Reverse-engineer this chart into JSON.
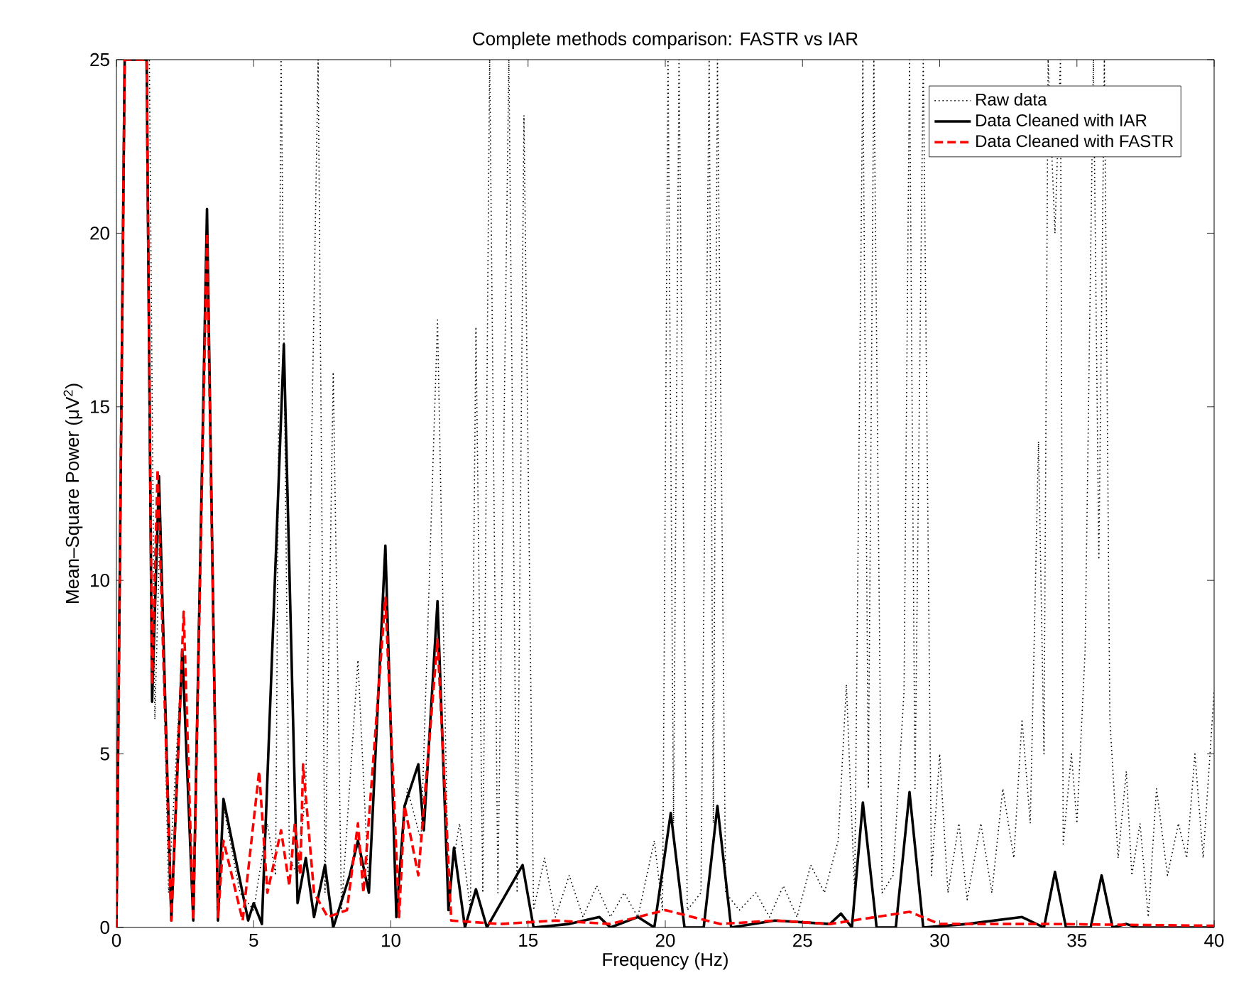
{
  "chart_data": {
    "type": "line",
    "title": "Complete methods comparison: FASTR vs IAR",
    "xlabel": "Frequency (Hz)",
    "ylabel": "Mean–Square Power (μV$^{2}$)",
    "xlim": [
      0,
      40
    ],
    "ylim": [
      0,
      25
    ],
    "xticks": [
      0,
      5,
      10,
      15,
      20,
      25,
      30,
      35,
      40
    ],
    "yticks": [
      0,
      5,
      10,
      15,
      20,
      25
    ],
    "grid": false,
    "legend": "top right",
    "series": [
      {
        "name": "Raw data",
        "color": "#000000",
        "line_style": "dotted",
        "x": [
          0,
          0.3,
          1.2,
          1.4,
          1.6,
          1.9,
          2.4,
          2.8,
          3.3,
          3.7,
          3.9,
          4.5,
          5.0,
          5.5,
          5.8,
          6.0,
          6.3,
          6.6,
          6.9,
          7.35,
          7.6,
          7.9,
          8.2,
          8.8,
          9.2,
          9.8,
          10.2,
          10.6,
          11.1,
          11.7,
          12.1,
          12.5,
          12.9,
          13.1,
          13.35,
          13.6,
          13.9,
          14.3,
          14.6,
          14.85,
          15.2,
          15.6,
          16.0,
          16.5,
          17.0,
          17.5,
          18.0,
          18.5,
          19.0,
          19.6,
          19.9,
          20.1,
          20.3,
          20.5,
          20.8,
          21.3,
          21.6,
          21.75,
          21.9,
          22.2,
          22.7,
          23.3,
          23.8,
          24.3,
          24.8,
          25.3,
          25.8,
          26.3,
          26.6,
          26.9,
          27.2,
          27.4,
          27.6,
          27.9,
          28.3,
          28.7,
          28.9,
          29.1,
          29.4,
          29.7,
          30.0,
          30.3,
          30.7,
          31.0,
          31.5,
          31.9,
          32.3,
          32.7,
          33.0,
          33.3,
          33.6,
          33.8,
          33.95,
          34.2,
          34.4,
          34.5,
          34.8,
          35.0,
          35.3,
          35.6,
          35.8,
          36.0,
          36.2,
          36.5,
          36.8,
          37.0,
          37.3,
          37.6,
          37.9,
          38.3,
          38.7,
          39.0,
          39.3,
          39.6,
          40
        ],
        "values": [
          0.5,
          25,
          25,
          6,
          12,
          1,
          8,
          0.5,
          20.5,
          0.5,
          3.5,
          1,
          0.5,
          3,
          1.5,
          25,
          2,
          1.5,
          4,
          25,
          1,
          16,
          0.5,
          7.7,
          1,
          11,
          0.5,
          4,
          2.5,
          17.5,
          1,
          3,
          0.5,
          17.3,
          1,
          25,
          1,
          25,
          1,
          23.4,
          0.5,
          2,
          0.3,
          1.5,
          0.3,
          1.2,
          0.3,
          1.0,
          0.3,
          2.5,
          0.5,
          25,
          3,
          25,
          0.5,
          1,
          25,
          3,
          25,
          1,
          0.5,
          1.0,
          0.3,
          1.2,
          0.3,
          1.8,
          1,
          2.5,
          7,
          1,
          25,
          4,
          25,
          1,
          1.5,
          6.8,
          25,
          4,
          25,
          1.5,
          5,
          1,
          3,
          0.8,
          3,
          1,
          4,
          2,
          6,
          3,
          14,
          5,
          25,
          20,
          25,
          2.4,
          5,
          3,
          8,
          25,
          10.6,
          25,
          6,
          2,
          4.5,
          1.5,
          3,
          0.3,
          4,
          1.5,
          3,
          2,
          5,
          2,
          6.8
        ]
      },
      {
        "name": "Data Cleaned with IAR",
        "color": "#000000",
        "line_style": "solid",
        "x": [
          0,
          0.3,
          1.1,
          1.3,
          1.55,
          2.0,
          2.4,
          2.8,
          3.3,
          3.7,
          3.9,
          4.8,
          5.0,
          5.3,
          6.1,
          6.6,
          6.9,
          7.2,
          7.6,
          7.9,
          8.5,
          8.8,
          9.2,
          9.8,
          10.2,
          10.5,
          11.0,
          11.2,
          11.7,
          12.1,
          12.3,
          12.7,
          13.1,
          13.5,
          14.8,
          15.2,
          16.5,
          17.6,
          18.0,
          19.0,
          19.6,
          20.2,
          20.7,
          21.4,
          21.9,
          22.4,
          24.0,
          26.0,
          26.4,
          26.8,
          27.2,
          27.7,
          28.4,
          28.9,
          29.4,
          31.0,
          33.0,
          33.8,
          34.2,
          34.6,
          35.5,
          35.9,
          36.3,
          36.8,
          37.2,
          40
        ],
        "values": [
          0,
          25,
          25,
          6.5,
          13,
          0.2,
          8,
          0.2,
          20.7,
          0.2,
          3.7,
          0.2,
          0.7,
          0.1,
          16.8,
          0.7,
          2.0,
          0.3,
          1.8,
          0,
          1.5,
          2.5,
          1.0,
          11,
          0.3,
          3.5,
          4.7,
          2.8,
          9.4,
          0.5,
          2.3,
          0,
          1.1,
          0,
          1.8,
          0,
          0.1,
          0.3,
          0,
          0.3,
          0,
          3.3,
          0,
          0,
          3.5,
          0,
          0.2,
          0.1,
          0.4,
          0,
          3.6,
          0,
          0,
          3.9,
          0,
          0.1,
          0.3,
          0,
          1.6,
          0,
          0,
          1.5,
          0,
          0.1,
          0,
          0
        ]
      },
      {
        "name": "Data Cleaned with FASTR",
        "color": "#ff0000",
        "line_style": "dashed",
        "x": [
          0,
          0.3,
          1.1,
          1.3,
          1.5,
          2.0,
          2.45,
          2.8,
          3.3,
          3.7,
          3.9,
          4.6,
          5.2,
          5.5,
          6.0,
          6.3,
          6.5,
          6.7,
          6.8,
          7.2,
          7.7,
          8.4,
          8.8,
          9.0,
          9.8,
          10.3,
          10.5,
          11.0,
          11.7,
          12.2,
          14.0,
          16.0,
          18.0,
          20.0,
          22.0,
          24.0,
          26.0,
          28.9,
          30.0,
          34.0,
          40
        ],
        "values": [
          0,
          25,
          25,
          7,
          13.2,
          0.2,
          9.1,
          0.2,
          20,
          0.3,
          2.5,
          0.2,
          4.5,
          1.0,
          2.8,
          1.2,
          3.0,
          1.5,
          4.7,
          1.0,
          0.3,
          0.5,
          3,
          1,
          9.5,
          0.3,
          3.5,
          1.5,
          8.3,
          0.2,
          0.1,
          0.2,
          0.1,
          0.5,
          0.1,
          0.2,
          0.1,
          0.45,
          0.1,
          0.1,
          0.05
        ]
      }
    ]
  }
}
